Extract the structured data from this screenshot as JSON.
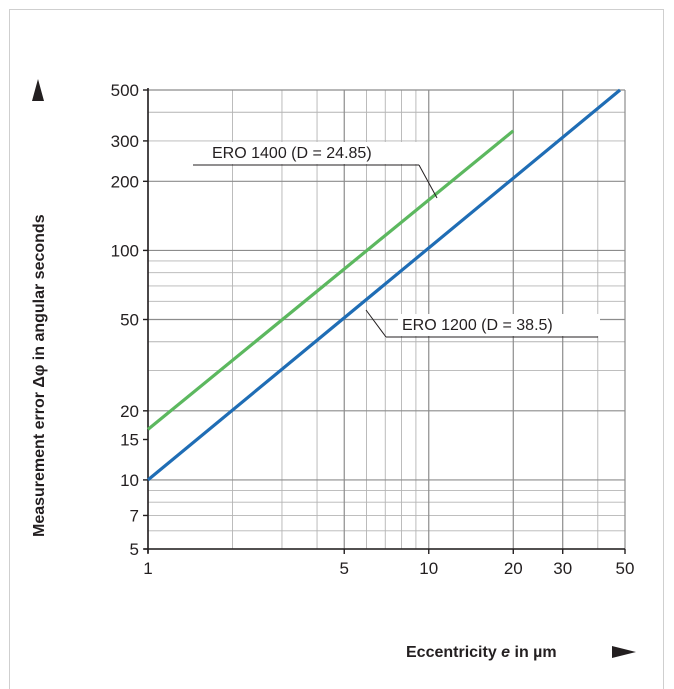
{
  "chart_data": {
    "type": "line",
    "x_scale": "log",
    "y_scale": "log",
    "xlim": [
      1,
      50
    ],
    "ylim": [
      5,
      500
    ],
    "x_ticks": [
      "1",
      "5",
      "10",
      "20",
      "30",
      "50"
    ],
    "y_ticks": [
      "5",
      "7",
      "10",
      "15",
      "20",
      "50",
      "100",
      "200",
      "300",
      "500"
    ],
    "xlabel": "Eccentricity e in µm",
    "xlabel_parts": [
      "Eccentricity ",
      "e",
      " in µm"
    ],
    "ylabel": "Measurement error Δφ in angular seconds",
    "grid": true,
    "series": [
      {
        "name": "ERO 1400 (D = 24.85)",
        "color": "#5cb85f",
        "x": [
          1,
          20
        ],
        "y": [
          16.6,
          332
        ]
      },
      {
        "name": "ERO 1200 (D = 38.5)",
        "color": "#1f6db5",
        "x": [
          1,
          48
        ],
        "y": [
          10,
          500
        ]
      }
    ]
  }
}
